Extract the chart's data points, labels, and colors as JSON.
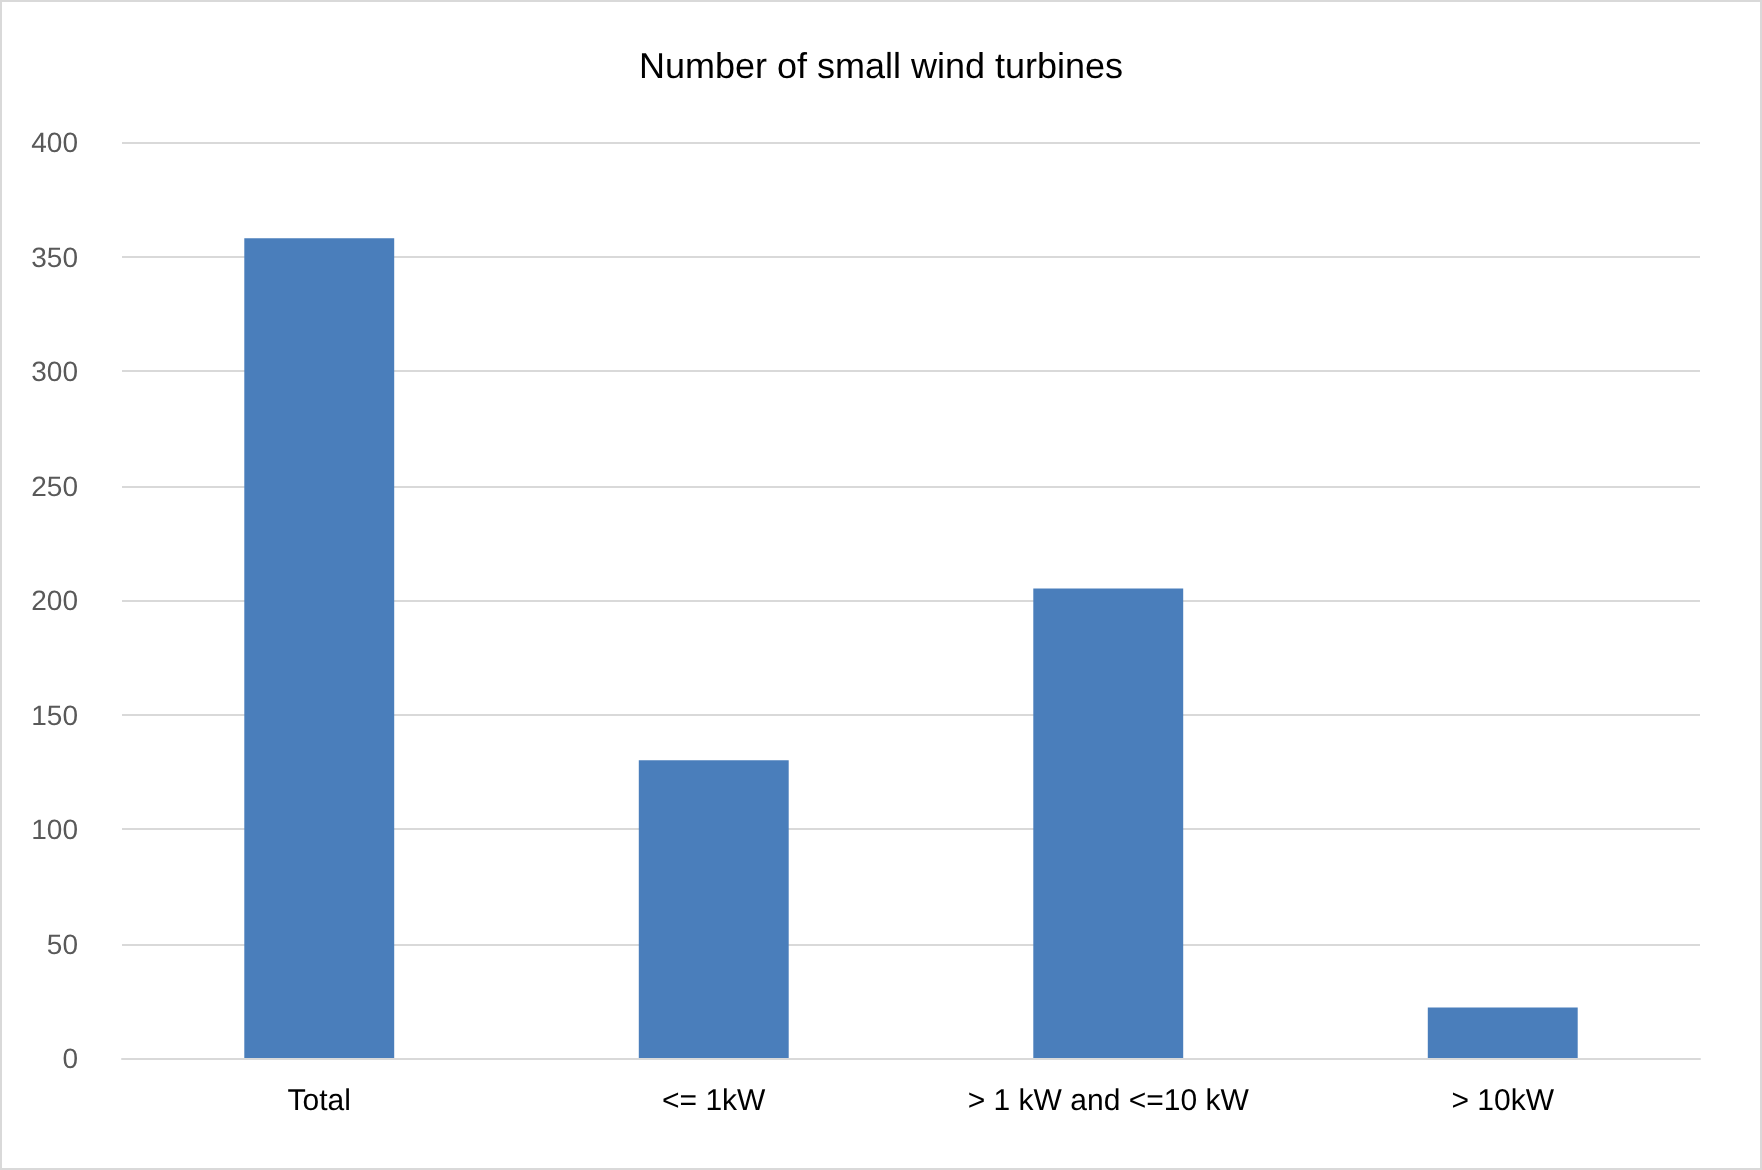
{
  "chart_data": {
    "type": "bar",
    "title": "Number of small wind turbines",
    "categories": [
      "Total",
      "<= 1kW",
      "> 1 kW and <=10 kW",
      "> 10kW"
    ],
    "values": [
      358,
      130,
      205,
      22
    ],
    "color": "#4a7ebb",
    "ylim": [
      0,
      400
    ],
    "yticks": [
      0,
      50,
      100,
      150,
      200,
      250,
      300,
      350,
      400
    ],
    "grid": "y"
  }
}
